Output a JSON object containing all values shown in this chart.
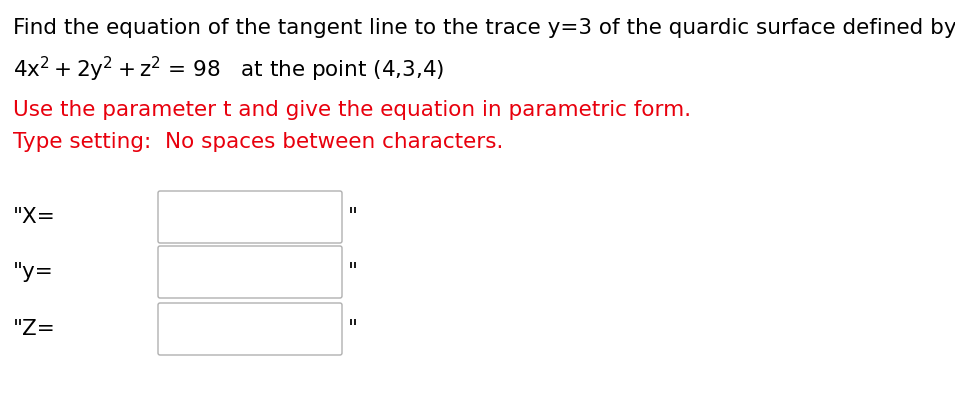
{
  "bg_color": "#ffffff",
  "line1": "Find the equation of the tangent line to the trace y=3 of the quardic surface defined by",
  "line3": "Use the parameter t and give the equation in parametric form.",
  "line4": "Type setting:  No spaces between characters.",
  "label_x": "\"X=",
  "label_y": "\"y=",
  "label_z": "\"Z=",
  "quote_mark": "\"",
  "text_color": "#000000",
  "red_color": "#e8000d",
  "font_size_main": 15.5,
  "font_size_labels": 15.5,
  "font_size_super": 10,
  "fig_width": 9.55,
  "fig_height": 4.0,
  "dpi": 100
}
